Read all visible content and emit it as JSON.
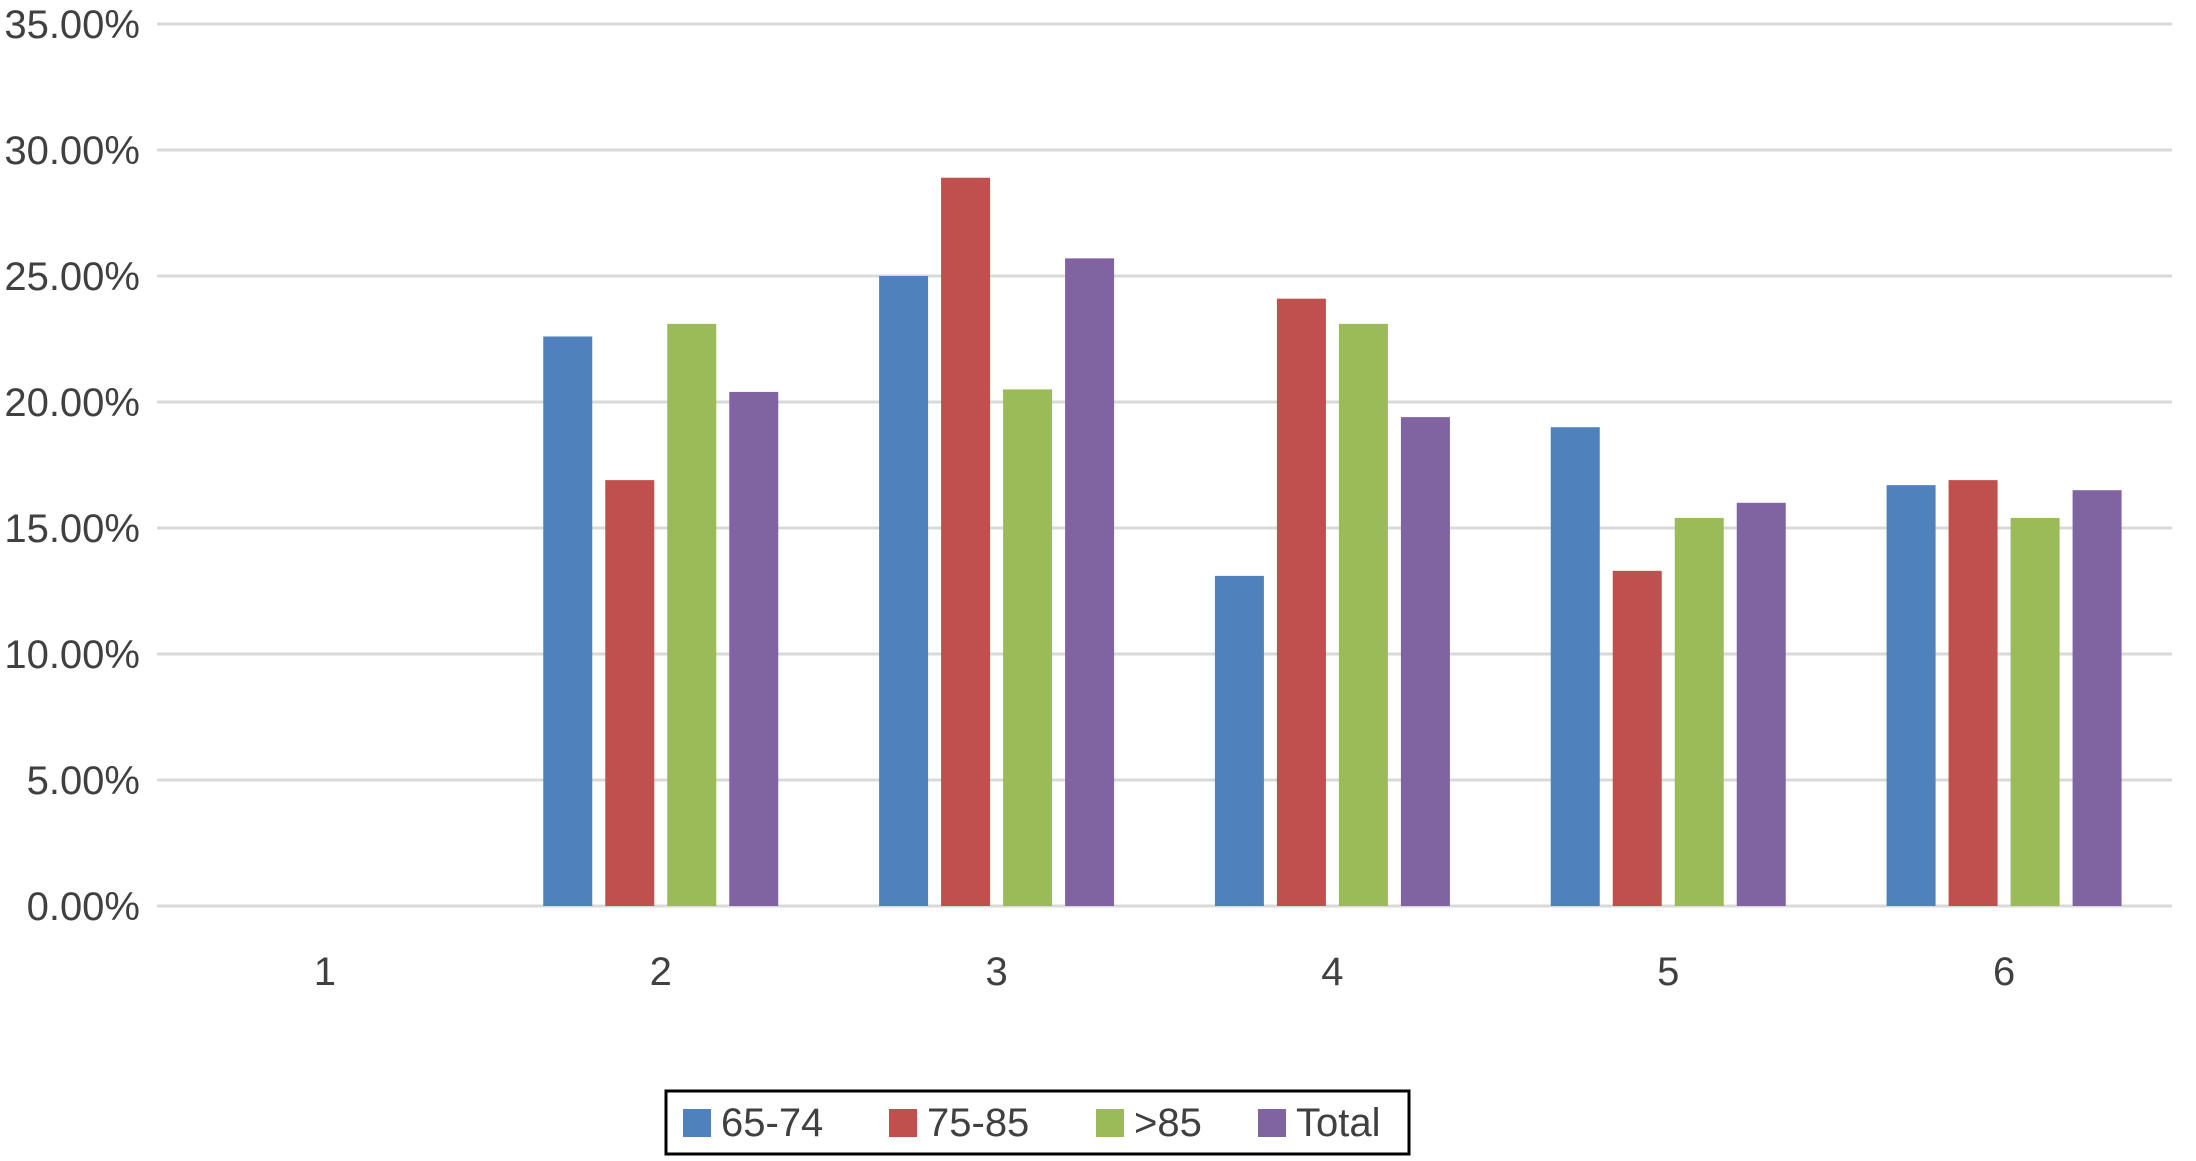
{
  "chart_data": {
    "type": "bar",
    "categories": [
      "1",
      "2",
      "3",
      "4",
      "5",
      "6"
    ],
    "series": [
      {
        "name": "65-74",
        "color": "#4f81bd",
        "values": [
          0,
          22.6,
          25.0,
          13.1,
          19.0,
          16.7
        ]
      },
      {
        "name": "75-85",
        "color": "#c0504d",
        "values": [
          0,
          16.9,
          28.9,
          24.1,
          13.3,
          16.9
        ]
      },
      {
        "name": ">85",
        "color": "#9bbb59",
        "values": [
          0,
          23.1,
          20.5,
          23.1,
          15.4,
          15.4
        ]
      },
      {
        "name": "Total",
        "color": "#8064a2",
        "values": [
          0,
          20.4,
          25.7,
          19.4,
          16.0,
          16.5
        ]
      }
    ],
    "ylim": [
      0,
      35
    ],
    "yticks": [
      "0.00%",
      "5.00%",
      "10.00%",
      "15.00%",
      "20.00%",
      "25.00%",
      "30.00%",
      "35.00%"
    ],
    "ytick_values": [
      0,
      5,
      10,
      15,
      20,
      25,
      30,
      35
    ],
    "grid": true,
    "legend_position": "bottom-center",
    "gridline_color": "#d9d9d9",
    "axis_text_color": "#404040"
  }
}
